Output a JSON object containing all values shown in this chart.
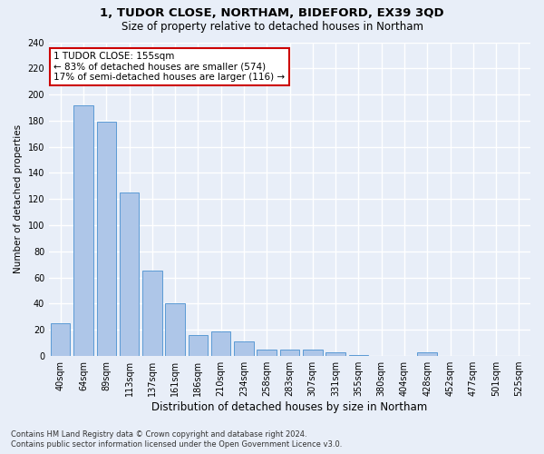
{
  "title": "1, TUDOR CLOSE, NORTHAM, BIDEFORD, EX39 3QD",
  "subtitle": "Size of property relative to detached houses in Northam",
  "xlabel": "Distribution of detached houses by size in Northam",
  "ylabel": "Number of detached properties",
  "categories": [
    "40sqm",
    "64sqm",
    "89sqm",
    "113sqm",
    "137sqm",
    "161sqm",
    "186sqm",
    "210sqm",
    "234sqm",
    "258sqm",
    "283sqm",
    "307sqm",
    "331sqm",
    "355sqm",
    "380sqm",
    "404sqm",
    "428sqm",
    "452sqm",
    "477sqm",
    "501sqm",
    "525sqm"
  ],
  "values": [
    25,
    192,
    179,
    125,
    65,
    40,
    16,
    19,
    11,
    5,
    5,
    5,
    3,
    1,
    0,
    0,
    3,
    0,
    0,
    0,
    0
  ],
  "bar_color": "#aec6e8",
  "bar_edge_color": "#5b9bd5",
  "annotation_text": "1 TUDOR CLOSE: 155sqm\n← 83% of detached houses are smaller (574)\n17% of semi-detached houses are larger (116) →",
  "annotation_box_color": "#ffffff",
  "annotation_box_edge_color": "#cc0000",
  "ylim": [
    0,
    240
  ],
  "yticks": [
    0,
    20,
    40,
    60,
    80,
    100,
    120,
    140,
    160,
    180,
    200,
    220,
    240
  ],
  "footer_line1": "Contains HM Land Registry data © Crown copyright and database right 2024.",
  "footer_line2": "Contains public sector information licensed under the Open Government Licence v3.0.",
  "bg_color": "#e8eef8",
  "plot_bg_color": "#e8eef8",
  "grid_color": "#ffffff",
  "title_fontsize": 9.5,
  "subtitle_fontsize": 8.5,
  "ylabel_fontsize": 7.5,
  "xlabel_fontsize": 8.5,
  "tick_fontsize": 7,
  "footer_fontsize": 6
}
